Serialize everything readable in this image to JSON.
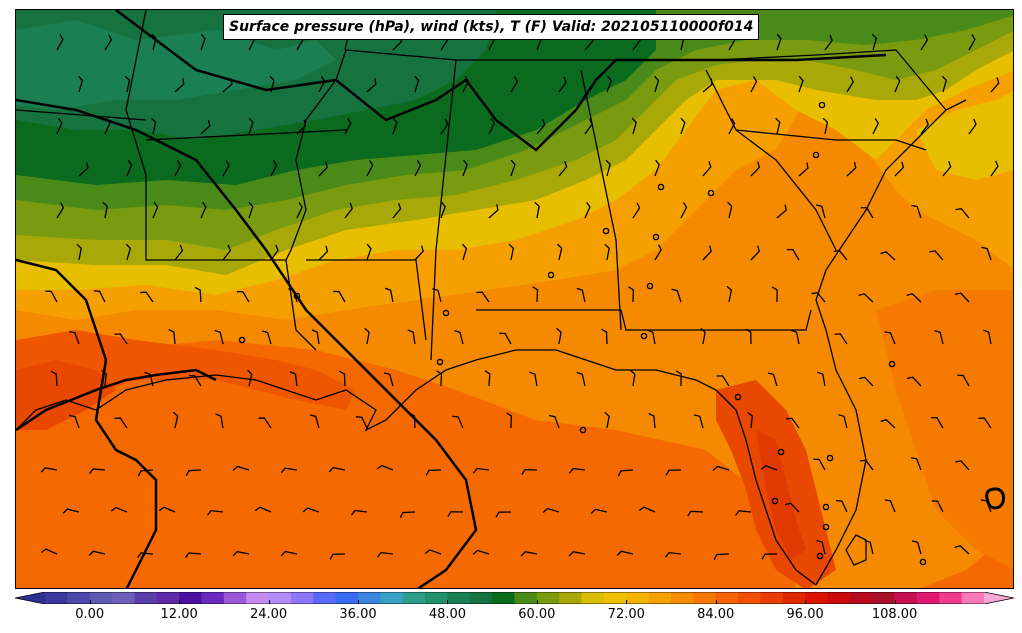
{
  "title": "Surface pressure (hPa), wind (kts), T (F) Valid: 202105110000f014",
  "colorbar": {
    "min": -6,
    "max": 120,
    "step": 3,
    "tick_labels": [
      "0.00",
      "12.00",
      "24.00",
      "36.00",
      "48.00",
      "60.00",
      "72.00",
      "84.00",
      "96.00",
      "108.00"
    ],
    "colors": [
      "#3a3a9e",
      "#4a4aa8",
      "#5c5cb2",
      "#6e5fb8",
      "#5a3fa8",
      "#5e2aa8",
      "#4c0fa0",
      "#6a2ac0",
      "#9a5ad8",
      "#c48cf0",
      "#b48cf8",
      "#8c78f8",
      "#5a6af8",
      "#3a6af0",
      "#3a86e0",
      "#3aa0c8",
      "#2e9e88",
      "#22906a",
      "#1a8054",
      "#16723e",
      "#0a6a1e",
      "#4a8a18",
      "#7a9a10",
      "#a8a808",
      "#d8bc00",
      "#f0c000",
      "#f5b200",
      "#f5a000",
      "#f58c00",
      "#f57800",
      "#f56400",
      "#f05000",
      "#e83c00",
      "#e02800",
      "#d81400",
      "#c80a0a",
      "#b8081e",
      "#a8102a",
      "#c81050",
      "#e01870",
      "#f03c90",
      "#f878b8"
    ],
    "extend_low_color": "#2e2e90",
    "extend_high_color": "#f8a8d8"
  },
  "map_colors": {
    "t60": "#0a6a1e",
    "t57": "#16723e",
    "t54": "#1a8054",
    "t63": "#4a8a18",
    "t66": "#7a9a10",
    "t69": "#a8a808",
    "t72": "#e8be00",
    "t75": "#f5a800",
    "t78": "#f59200",
    "t81": "#f57200",
    "t84": "#f06400",
    "t87": "#e84e00",
    "t90": "#e03c00"
  }
}
